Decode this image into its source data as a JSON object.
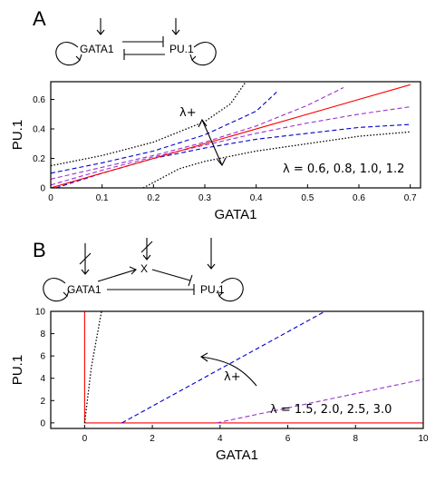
{
  "chart_data": [
    {
      "panel": "A",
      "type": "line",
      "xlabel": "GATA1",
      "ylabel": "PU.1",
      "xlim": [
        0,
        0.72
      ],
      "ylim": [
        0,
        0.72
      ],
      "xticks": [
        0,
        0.1,
        0.2,
        0.3,
        0.4,
        0.5,
        0.6,
        0.7
      ],
      "yticks": [
        0,
        0.2,
        0.4,
        0.6
      ],
      "annotation_label": "λ+",
      "legend_text": "λ = 0.6, 0.8, 1.0, 1.2",
      "network": {
        "nodes": [
          "GATA1",
          "PU.1"
        ]
      },
      "series": [
        {
          "color": "#000000",
          "dash": "dotted",
          "x": [
            0,
            0.1,
            0.2,
            0.3,
            0.35,
            0.38
          ],
          "y": [
            0.15,
            0.22,
            0.31,
            0.45,
            0.57,
            0.72
          ]
        },
        {
          "color": "#0000cc",
          "dash": "dashed",
          "x": [
            0,
            0.1,
            0.2,
            0.3,
            0.4,
            0.44
          ],
          "y": [
            0.1,
            0.17,
            0.25,
            0.36,
            0.52,
            0.65
          ]
        },
        {
          "color": "#0000cc",
          "dash": "dashed",
          "x": [
            0.01,
            0.1,
            0.2,
            0.3,
            0.4,
            0.5,
            0.6,
            0.7
          ],
          "y": [
            0,
            0.1,
            0.2,
            0.27,
            0.33,
            0.37,
            0.41,
            0.43
          ]
        },
        {
          "color": "#000000",
          "dash": "dotted",
          "x": [
            0.18,
            0.25,
            0.3,
            0.4,
            0.5,
            0.6,
            0.7
          ],
          "y": [
            0,
            0.13,
            0.18,
            0.25,
            0.3,
            0.35,
            0.38
          ]
        },
        {
          "color": "#9933cc",
          "dash": "dashed",
          "x": [
            0,
            0.1,
            0.2,
            0.3,
            0.4,
            0.5,
            0.57
          ],
          "y": [
            0.06,
            0.14,
            0.22,
            0.31,
            0.42,
            0.56,
            0.68
          ]
        },
        {
          "color": "#9933cc",
          "dash": "dashed",
          "x": [
            0,
            0.1,
            0.2,
            0.3,
            0.4,
            0.5,
            0.6,
            0.7
          ],
          "y": [
            0.02,
            0.12,
            0.21,
            0.29,
            0.37,
            0.44,
            0.5,
            0.55
          ]
        },
        {
          "color": "#ff0000",
          "dash": "solid",
          "x": [
            0,
            0.7
          ],
          "y": [
            0,
            0.7
          ]
        }
      ]
    },
    {
      "panel": "B",
      "type": "line",
      "xlabel": "GATA1",
      "ylabel": "PU.1",
      "xlim": [
        -1,
        10
      ],
      "ylim": [
        -0.5,
        10
      ],
      "xticks": [
        0,
        2,
        4,
        6,
        8,
        10
      ],
      "yticks": [
        0,
        2,
        4,
        6,
        8,
        10
      ],
      "annotation_label": "λ+",
      "legend_text": "λ = 1.5, 2.0, 2.5, 3.0",
      "network": {
        "nodes": [
          "GATA1",
          "X",
          "PU.1"
        ]
      },
      "series": [
        {
          "color": "#ff0000",
          "dash": "solid",
          "x": [
            0,
            0,
            10
          ],
          "y": [
            10,
            0,
            0
          ]
        },
        {
          "color": "#000000",
          "dash": "dotted",
          "x": [
            0,
            0.2,
            0.5
          ],
          "y": [
            0,
            5,
            10
          ]
        },
        {
          "color": "#0000cc",
          "dash": "dashed",
          "x": [
            1.1,
            7.1
          ],
          "y": [
            0,
            10
          ]
        },
        {
          "color": "#9933cc",
          "dash": "dashed",
          "x": [
            3.9,
            10
          ],
          "y": [
            0,
            3.9
          ]
        }
      ]
    }
  ]
}
